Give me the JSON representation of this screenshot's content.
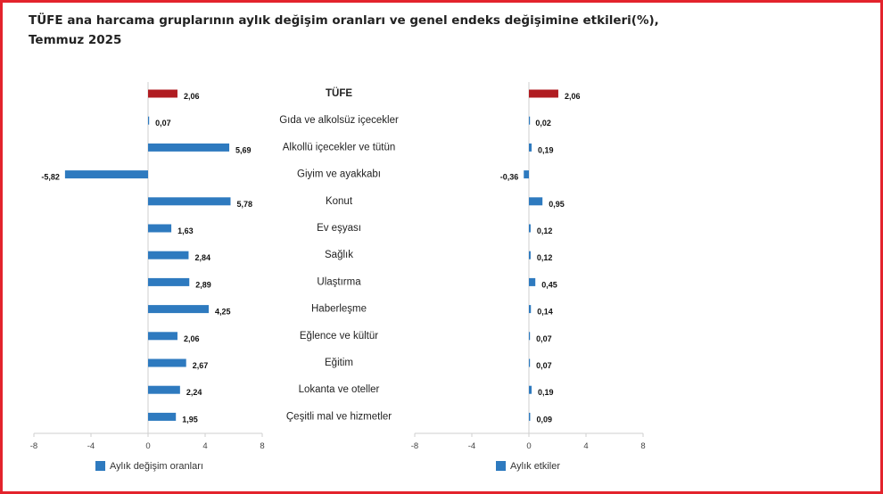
{
  "title": "TÜFE ana harcama gruplarının aylık değişim oranları ve genel endeks değişimine etkileri(%), Temmuz 2025",
  "colors": {
    "highlight": "#b01c21",
    "series": "#2e7abf",
    "frame": "#e3232c"
  },
  "chart_data": [
    {
      "type": "bar",
      "orientation": "horizontal",
      "categories": [
        "TÜFE",
        "Gıda ve alkolsüz içecekler",
        "Alkollü içecekler ve tütün",
        "Giyim ve ayakkabı",
        "Konut",
        "Ev eşyası",
        "Sağlık",
        "Ulaştırma",
        "Haberleşme",
        "Eğlence ve kültür",
        "Eğitim",
        "Lokanta ve oteller",
        "Çeşitli mal ve hizmetler"
      ],
      "series": [
        {
          "name": "Aylık değişim oranları",
          "values": [
            2.06,
            0.07,
            5.69,
            -5.82,
            5.78,
            1.63,
            2.84,
            2.89,
            4.25,
            2.06,
            2.67,
            2.24,
            1.95
          ]
        }
      ],
      "value_labels": [
        "2,06",
        "0,07",
        "5,69",
        "-5,82",
        "5,78",
        "1,63",
        "2,84",
        "2,89",
        "4,25",
        "2,06",
        "2,67",
        "2,24",
        "1,95"
      ],
      "xlim": [
        -8,
        8
      ],
      "xticks": [
        "-8",
        "-4",
        "0",
        "4",
        "8"
      ],
      "legend": "bottom-left"
    },
    {
      "type": "bar",
      "orientation": "horizontal",
      "categories": [
        "TÜFE",
        "Gıda ve alkolsüz içecekler",
        "Alkollü içecekler ve tütün",
        "Giyim ve ayakkabı",
        "Konut",
        "Ev eşyası",
        "Sağlık",
        "Ulaştırma",
        "Haberleşme",
        "Eğlence ve kültür",
        "Eğitim",
        "Lokanta ve oteller",
        "Çeşitli mal ve hizmetler"
      ],
      "series": [
        {
          "name": "Aylık etkiler",
          "values": [
            2.06,
            0.02,
            0.19,
            -0.36,
            0.95,
            0.12,
            0.12,
            0.45,
            0.14,
            0.07,
            0.07,
            0.19,
            0.09
          ]
        }
      ],
      "value_labels": [
        "2,06",
        "0,02",
        "0,19",
        "-0,36",
        "0,95",
        "0,12",
        "0,12",
        "0,45",
        "0,14",
        "0,07",
        "0,07",
        "0,19",
        "0,09"
      ],
      "xlim": [
        -8,
        8
      ],
      "xticks": [
        "-8",
        "-4",
        "0",
        "4",
        "8"
      ],
      "legend": "bottom-left"
    }
  ]
}
